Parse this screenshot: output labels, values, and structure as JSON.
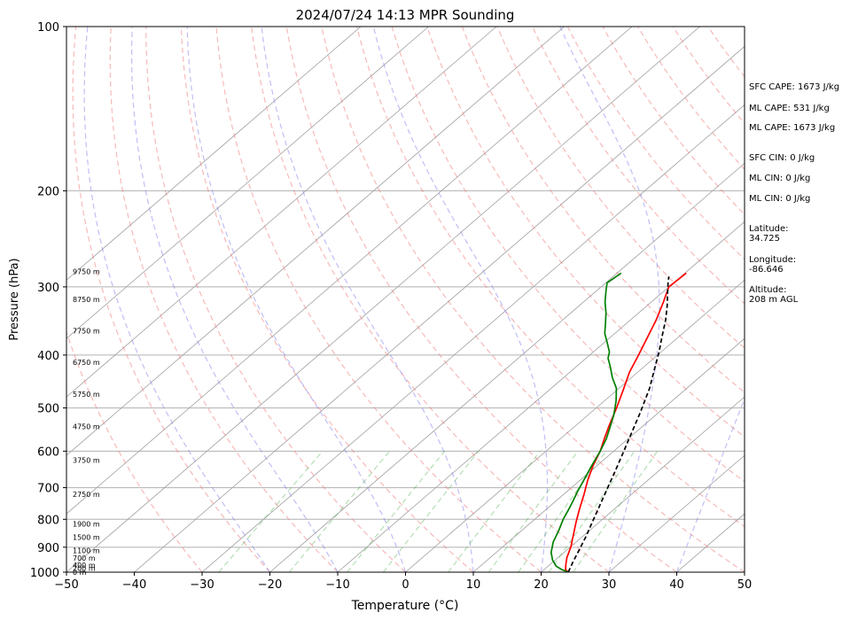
{
  "chart_data": {
    "type": "line",
    "title": "2024/07/24 14:13 MPR Sounding",
    "xlabel": "Temperature (°C)",
    "ylabel": "Pressure (hPa)",
    "xlim": [
      -50,
      50
    ],
    "ylim": [
      1000,
      100
    ],
    "y_scale": "log",
    "x_ticks": [
      -50,
      -40,
      -30,
      -20,
      -10,
      0,
      10,
      20,
      30,
      40,
      50
    ],
    "y_ticks": [
      100,
      200,
      300,
      400,
      500,
      600,
      700,
      800,
      900,
      1000
    ],
    "grid": true,
    "series": [
      {
        "color": "#ff0000",
        "points": [
          [
            24.0,
            1000
          ],
          [
            23.2,
            990
          ],
          [
            22.4,
            970
          ],
          [
            21.3,
            940
          ],
          [
            20.1,
            900
          ],
          [
            18.2,
            850
          ],
          [
            16.6,
            810
          ],
          [
            15.0,
            770
          ],
          [
            13.0,
            720
          ],
          [
            11.2,
            680
          ],
          [
            9.5,
            640
          ],
          [
            8.0,
            600
          ],
          [
            6.5,
            570
          ],
          [
            5.0,
            540
          ],
          [
            3.0,
            500
          ],
          [
            1.0,
            465
          ],
          [
            -1.2,
            430
          ],
          [
            -2.8,
            400
          ],
          [
            -4.6,
            370
          ],
          [
            -6.2,
            345
          ],
          [
            -8.2,
            320
          ],
          [
            -10.0,
            300
          ],
          [
            -9.8,
            283
          ]
        ]
      },
      {
        "color": "#008000",
        "points": [
          [
            24.0,
            1000
          ],
          [
            22.7,
            990
          ],
          [
            21.2,
            975
          ],
          [
            19.6,
            950
          ],
          [
            18.1,
            920
          ],
          [
            16.6,
            880
          ],
          [
            15.5,
            840
          ],
          [
            14.2,
            800
          ],
          [
            13.4,
            770
          ],
          [
            12.5,
            740
          ],
          [
            11.5,
            710
          ],
          [
            10.6,
            680
          ],
          [
            9.3,
            640
          ],
          [
            8.0,
            600
          ],
          [
            6.8,
            570
          ],
          [
            5.5,
            545
          ],
          [
            3.8,
            515
          ],
          [
            1.7,
            485
          ],
          [
            -0.4,
            460
          ],
          [
            -2.8,
            440
          ],
          [
            -5.0,
            420
          ],
          [
            -6.8,
            405
          ],
          [
            -7.6,
            395
          ],
          [
            -9.5,
            380
          ],
          [
            -11.5,
            365
          ],
          [
            -13.1,
            350
          ],
          [
            -14.8,
            335
          ],
          [
            -16.8,
            320
          ],
          [
            -18.6,
            305
          ],
          [
            -19.8,
            295
          ],
          [
            -19.4,
            283
          ]
        ]
      },
      {
        "color": "#000000",
        "points": [
          [
            24.0,
            1000
          ],
          [
            23.0,
            960
          ],
          [
            21.8,
            910
          ],
          [
            20.5,
            860
          ],
          [
            19.0,
            810
          ],
          [
            17.4,
            760
          ],
          [
            15.7,
            710
          ],
          [
            13.9,
            660
          ],
          [
            11.9,
            610
          ],
          [
            9.7,
            560
          ],
          [
            7.3,
            510
          ],
          [
            4.5,
            460
          ],
          [
            2.0,
            425
          ],
          [
            -0.3,
            395
          ],
          [
            -2.5,
            370
          ],
          [
            -4.8,
            345
          ],
          [
            -7.0,
            325
          ],
          [
            -9.5,
            305
          ],
          [
            -10.8,
            295
          ],
          [
            -11.8,
            287
          ]
        ]
      }
    ],
    "height_labels": [
      {
        "label": "9750 m",
        "p": 281
      },
      {
        "label": "8750 m",
        "p": 316
      },
      {
        "label": "7750 m",
        "p": 361
      },
      {
        "label": "6750 m",
        "p": 412
      },
      {
        "label": "5750 m",
        "p": 472
      },
      {
        "label": "4750 m",
        "p": 541
      },
      {
        "label": "3750 m",
        "p": 623
      },
      {
        "label": "2750 m",
        "p": 720
      },
      {
        "label": "1900 m",
        "p": 815
      },
      {
        "label": "1500 m",
        "p": 863
      },
      {
        "label": "1100 m",
        "p": 912
      },
      {
        "label": "700 m",
        "p": 942
      },
      {
        "label": "400 m",
        "p": 970
      },
      {
        "label": "200 m",
        "p": 983
      },
      {
        "label": "0 m",
        "p": 1000
      }
    ],
    "isotherms_c": [
      -100,
      -90,
      -80,
      -70,
      -60,
      -50,
      -40,
      -30,
      -20,
      -10,
      0,
      10,
      20,
      30,
      40,
      50
    ],
    "dry_adiabats_c": [
      -30,
      -20,
      -10,
      0,
      10,
      20,
      30,
      40,
      50,
      60,
      70,
      80,
      90,
      100,
      110,
      120,
      130,
      140,
      150,
      160
    ],
    "moist_adiabats_c": [
      -20,
      -10,
      0,
      10,
      20,
      30,
      40
    ],
    "mixing_ratios_gkg": [
      0.4,
      1,
      2,
      3,
      6,
      9,
      12,
      16,
      20
    ]
  },
  "info": {
    "sfc_cape": "SFC CAPE: 1673 J/kg",
    "ml_cape": "ML CAPE: 531 J/kg",
    "mu_cape": "ML CAPE: 1673 J/kg",
    "sfc_cin": "SFC CIN: 0 J/kg",
    "ml_cin": "ML CIN: 0 J/kg",
    "mu_cin": "ML CIN: 0 J/kg",
    "latitude": "Latitude:\n34.725",
    "longitude": "Longitude:\n-86.646",
    "altitude": "Altitude:\n208 m AGL"
  }
}
